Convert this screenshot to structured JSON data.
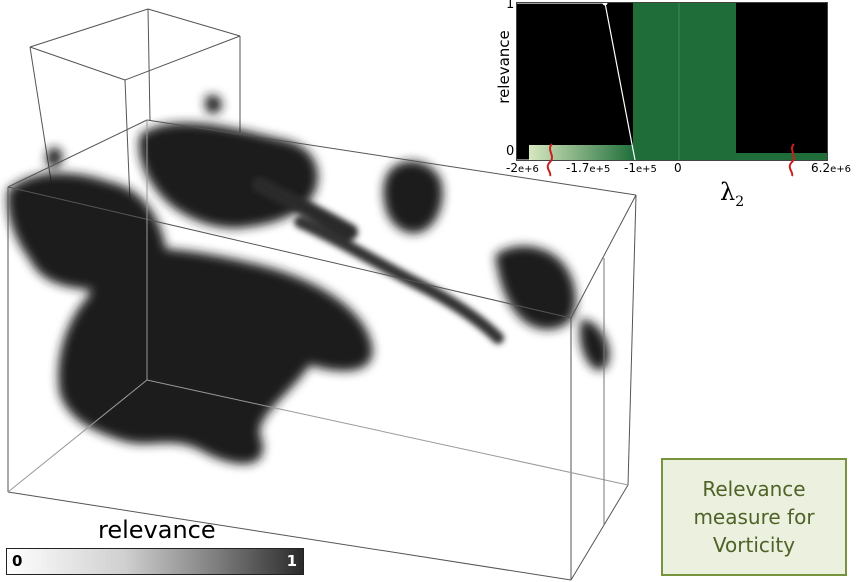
{
  "transfer_function": {
    "ylabel": "relevance",
    "y_ticks": [
      "1",
      "0"
    ],
    "x_ticks": [
      {
        "base": "-2",
        "exp": "e+6"
      },
      {
        "base": "-1.7",
        "exp": "e+5"
      },
      {
        "base": "-1",
        "exp": "e+5"
      },
      {
        "base": "0",
        "exp": ""
      },
      {
        "base": "6.2",
        "exp": "e+6"
      }
    ],
    "x_axis_symbol": "λ",
    "x_axis_subscript": "2",
    "colors": {
      "background": "#000000",
      "band": "#1f6e3a",
      "band_light": "#c9e0b0",
      "curve": "#ffffff",
      "axis_break": "#cc1f1f"
    }
  },
  "colorbar": {
    "title": "relevance",
    "min_label": "0",
    "max_label": "1"
  },
  "annotation": {
    "lines": [
      "Relevance",
      "measure for",
      "Vorticity"
    ],
    "colors": {
      "fill": "#ebf1de",
      "border": "#77933c",
      "text": "#4f6228"
    }
  }
}
